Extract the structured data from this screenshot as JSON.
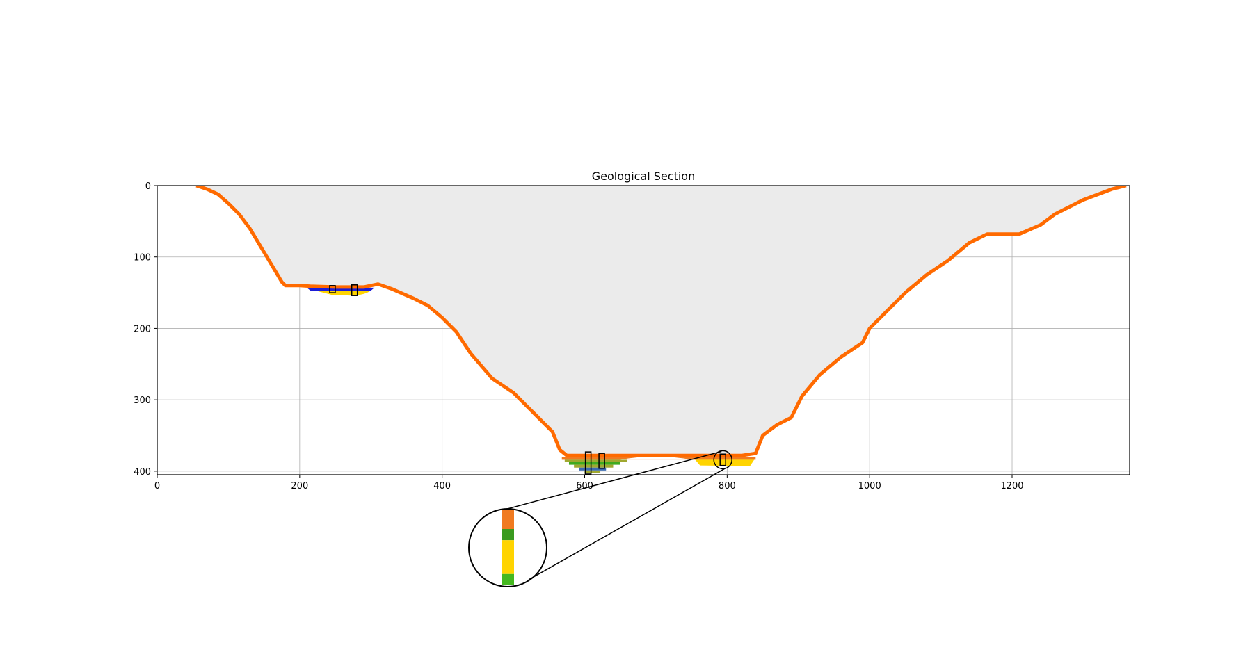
{
  "chart_data": {
    "type": "area",
    "title": "Geological Section",
    "xlabel": "",
    "ylabel": "",
    "xlim": [
      0,
      1365
    ],
    "ylim": [
      405,
      0
    ],
    "y_inverted": true,
    "grid": true,
    "x_ticks": [
      0,
      200,
      400,
      600,
      800,
      1000,
      1200
    ],
    "y_ticks": [
      0,
      100,
      200,
      300,
      400
    ],
    "colors": {
      "surface": "#ff6a00",
      "valley_fill": "#ebebeb",
      "blue": "#1c1cd6",
      "yellow": "#ffd400",
      "olive": "#a0a830",
      "green": "#3faa1f",
      "orange_core": "#f07a20",
      "steel_blue": "#3a6ab0"
    },
    "surface_profile": [
      [
        55,
        0
      ],
      [
        70,
        5
      ],
      [
        85,
        12
      ],
      [
        100,
        25
      ],
      [
        115,
        40
      ],
      [
        130,
        60
      ],
      [
        145,
        85
      ],
      [
        160,
        110
      ],
      [
        175,
        135
      ],
      [
        180,
        140
      ],
      [
        200,
        140
      ],
      [
        215,
        141
      ],
      [
        250,
        142
      ],
      [
        290,
        142
      ],
      [
        310,
        138
      ],
      [
        330,
        145
      ],
      [
        360,
        158
      ],
      [
        380,
        168
      ],
      [
        400,
        185
      ],
      [
        420,
        205
      ],
      [
        440,
        235
      ],
      [
        470,
        270
      ],
      [
        500,
        290
      ],
      [
        530,
        320
      ],
      [
        555,
        345
      ],
      [
        565,
        370
      ],
      [
        575,
        378
      ],
      [
        600,
        378
      ],
      [
        660,
        378
      ],
      [
        700,
        378
      ],
      [
        760,
        378
      ],
      [
        820,
        378
      ],
      [
        840,
        375
      ],
      [
        850,
        350
      ],
      [
        870,
        335
      ],
      [
        890,
        325
      ],
      [
        905,
        295
      ],
      [
        930,
        265
      ],
      [
        960,
        240
      ],
      [
        990,
        220
      ],
      [
        1000,
        200
      ],
      [
        1020,
        180
      ],
      [
        1050,
        150
      ],
      [
        1080,
        125
      ],
      [
        1110,
        105
      ],
      [
        1140,
        80
      ],
      [
        1165,
        68
      ],
      [
        1210,
        68
      ],
      [
        1240,
        55
      ],
      [
        1260,
        40
      ],
      [
        1300,
        20
      ],
      [
        1340,
        5
      ],
      [
        1360,
        0
      ]
    ],
    "boreholes": [
      {
        "x": 246,
        "top": 140,
        "bottom": 150
      },
      {
        "x": 277,
        "top": 139,
        "bottom": 154
      },
      {
        "x": 605,
        "top": 373,
        "bottom": 404
      },
      {
        "x": 624,
        "top": 375,
        "bottom": 396
      },
      {
        "x": 794,
        "top": 376,
        "bottom": 392
      }
    ],
    "callout": {
      "source_x": 794,
      "source_y": 384,
      "column_layers": [
        {
          "color": "#f07a20",
          "fraction": 0.25
        },
        {
          "color": "#3a9a1f",
          "fraction": 0.15
        },
        {
          "color": "#ffd400",
          "fraction": 0.45
        },
        {
          "color": "#44b81f",
          "fraction": 0.15
        }
      ]
    }
  }
}
